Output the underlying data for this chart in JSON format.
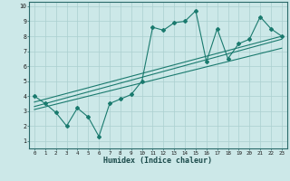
{
  "xlabel": "Humidex (Indice chaleur)",
  "bg_color": "#cce8e8",
  "grid_color": "#aacfcf",
  "line_color": "#1a7a6e",
  "xlim": [
    -0.5,
    23.5
  ],
  "ylim": [
    0.5,
    10.3
  ],
  "xticks": [
    0,
    1,
    2,
    3,
    4,
    5,
    6,
    7,
    8,
    9,
    10,
    11,
    12,
    13,
    14,
    15,
    16,
    17,
    18,
    19,
    20,
    21,
    22,
    23
  ],
  "yticks": [
    1,
    2,
    3,
    4,
    5,
    6,
    7,
    8,
    9,
    10
  ],
  "series1_x": [
    0,
    1,
    2,
    3,
    4,
    5,
    6,
    7,
    8,
    9,
    10,
    11,
    12,
    13,
    14,
    15,
    16,
    17,
    18,
    19,
    20,
    21,
    22,
    23
  ],
  "series1_y": [
    4.0,
    3.5,
    2.9,
    2.0,
    3.2,
    2.6,
    1.3,
    3.5,
    3.8,
    4.1,
    5.0,
    8.6,
    8.4,
    8.9,
    9.0,
    9.7,
    6.3,
    8.5,
    6.5,
    7.5,
    7.8,
    9.3,
    8.5,
    8.0
  ],
  "trend1_x": [
    0,
    23
  ],
  "trend1_y": [
    3.3,
    7.8
  ],
  "trend2_x": [
    0,
    23
  ],
  "trend2_y": [
    3.6,
    8.0
  ],
  "trend3_x": [
    0,
    23
  ],
  "trend3_y": [
    3.1,
    7.2
  ]
}
